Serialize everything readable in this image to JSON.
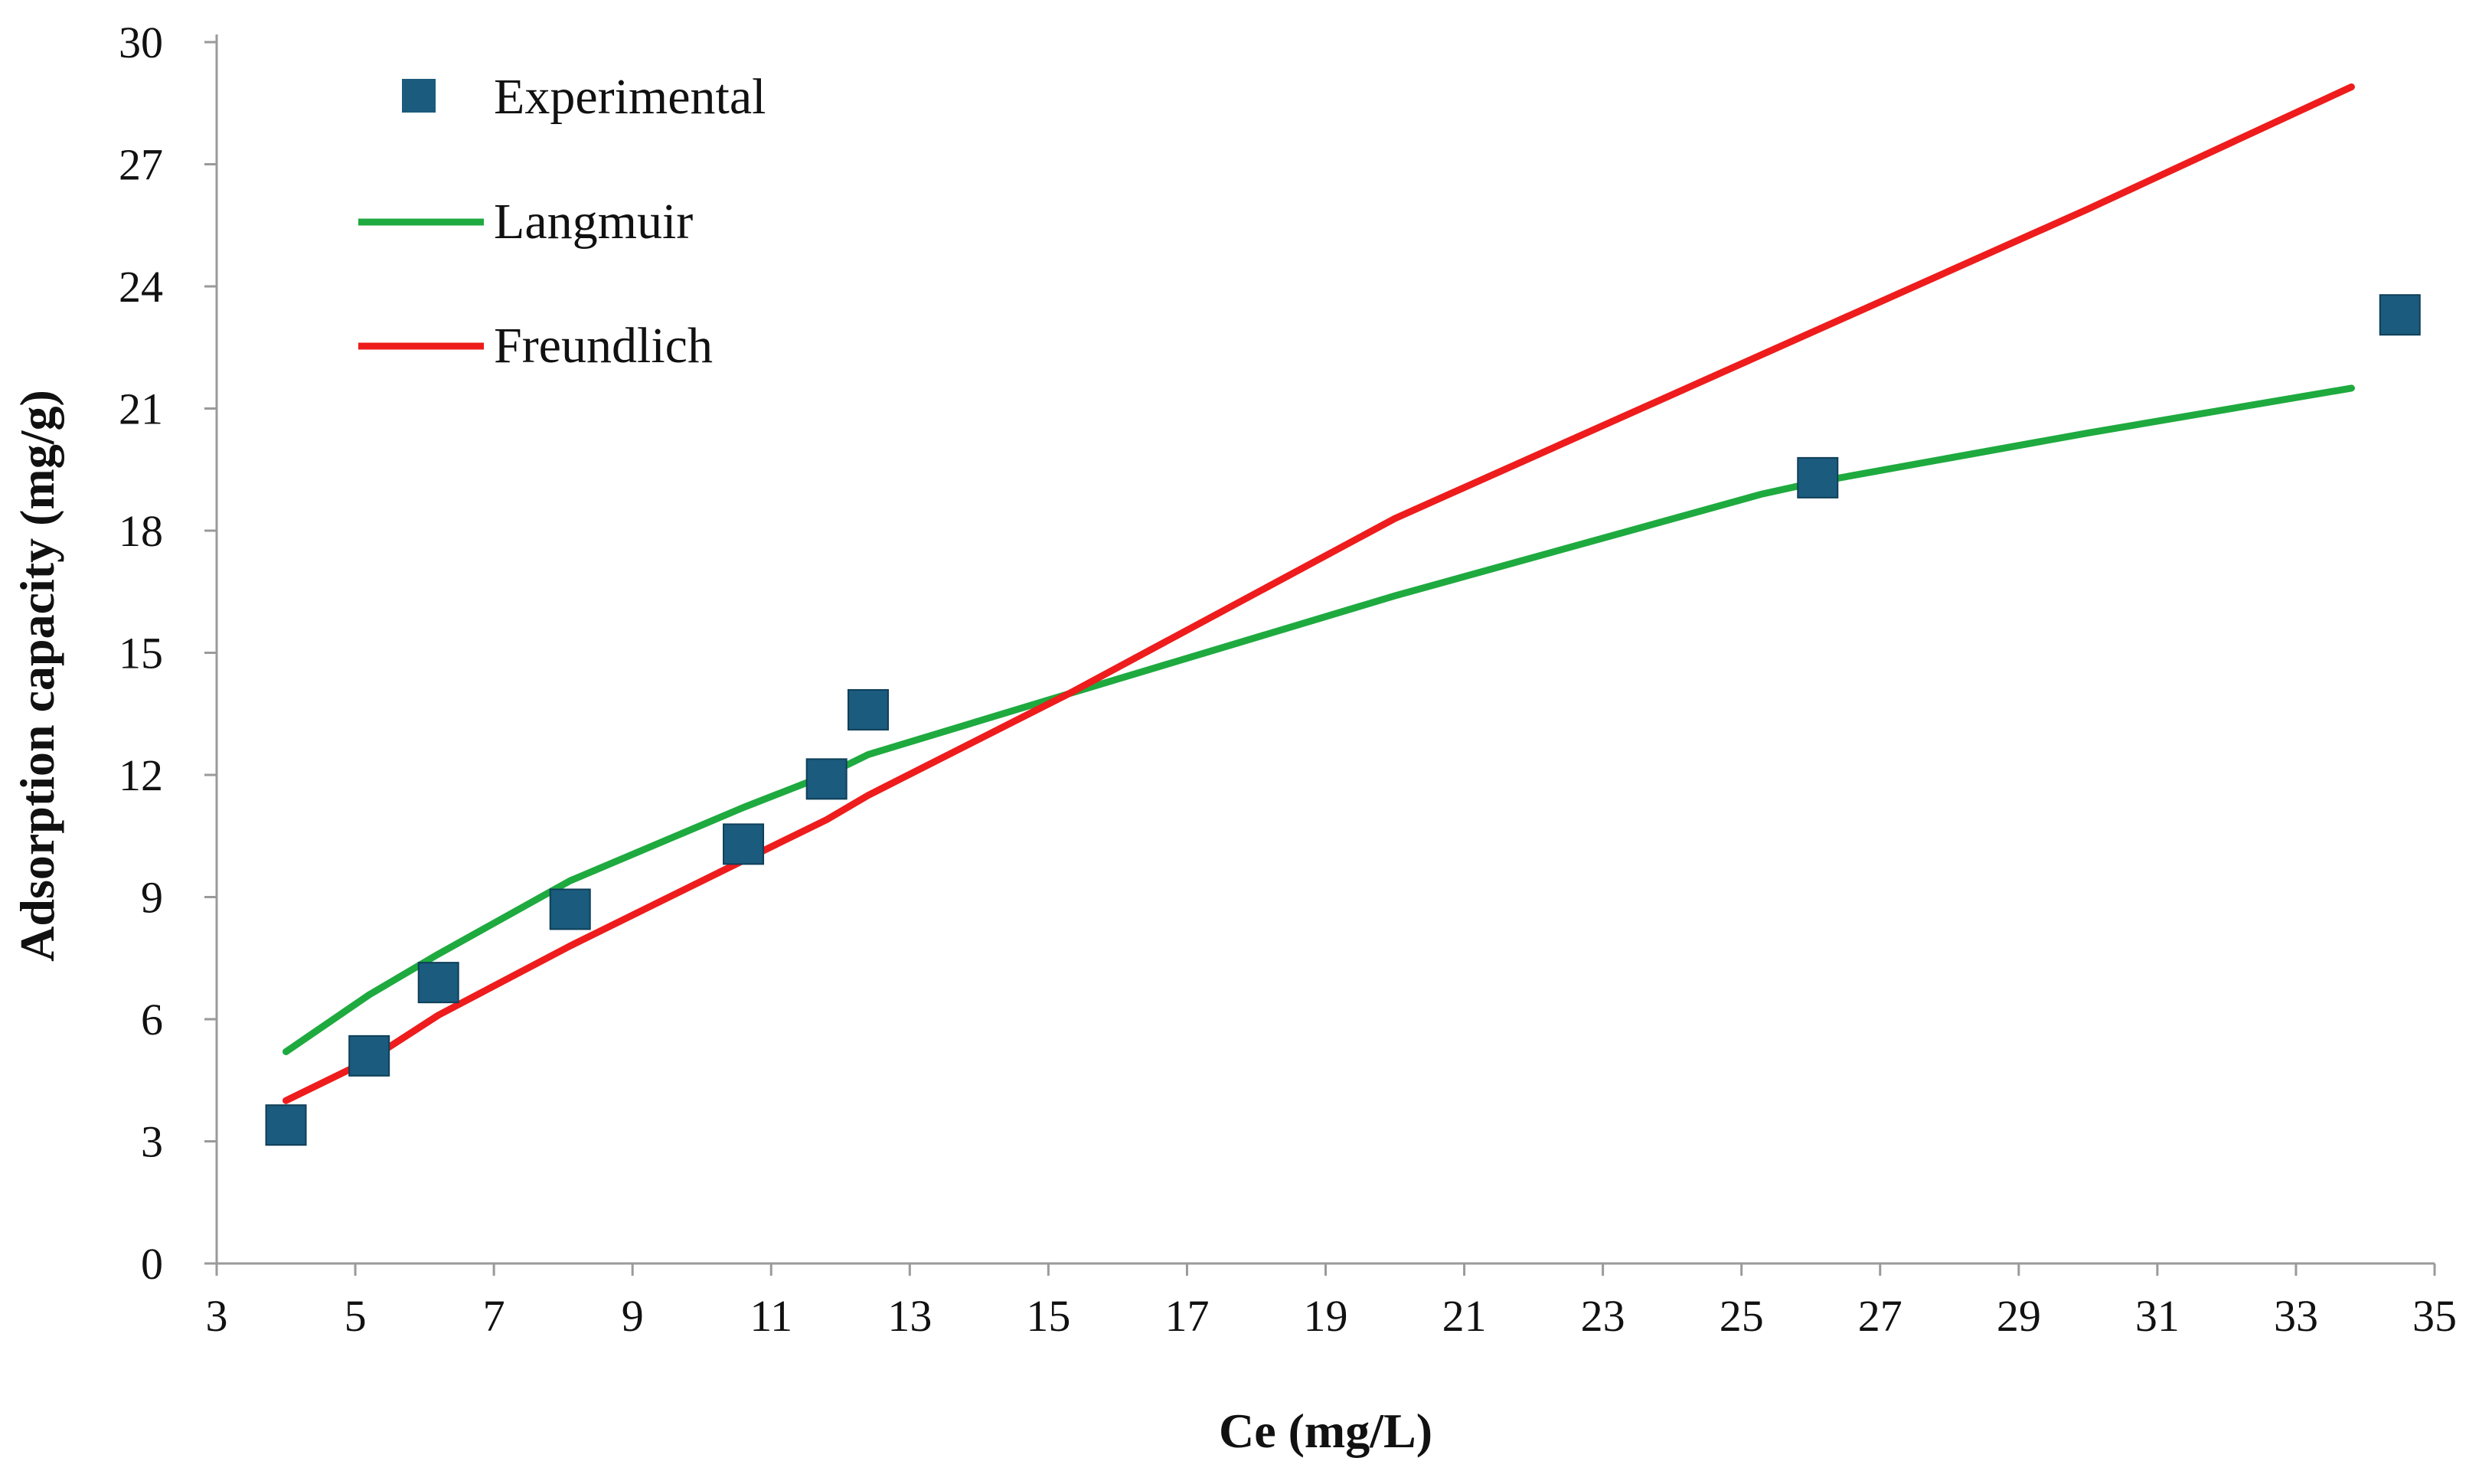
{
  "chart_data": {
    "type": "scatter",
    "xlabel": "Ce (mg/L)",
    "ylabel": "Adsorption capacity (mg/g)",
    "xlim": [
      3,
      35
    ],
    "ylim": [
      0,
      30
    ],
    "x_ticks": [
      3,
      5,
      7,
      9,
      11,
      13,
      15,
      17,
      19,
      21,
      23,
      25,
      27,
      29,
      31,
      33,
      35
    ],
    "y_ticks": [
      0,
      3,
      6,
      9,
      12,
      15,
      18,
      21,
      24,
      27,
      30
    ],
    "grid": false,
    "legend_position": "top-left",
    "series": [
      {
        "name": "Experimental",
        "kind": "markers",
        "marker": "square",
        "color": "#1b5b7e",
        "x": [
          4.0,
          5.2,
          6.2,
          8.1,
          10.6,
          11.8,
          12.4,
          26.1,
          34.5
        ],
        "y": [
          3.4,
          5.1,
          6.9,
          8.7,
          10.3,
          11.9,
          13.6,
          19.3,
          23.3
        ]
      },
      {
        "name": "Langmuir",
        "kind": "line",
        "color": "#1eaa3f",
        "x": [
          4.0,
          5.2,
          6.2,
          8.1,
          10.6,
          11.8,
          12.4,
          15.5,
          20.0,
          25.3,
          26.1,
          30.0,
          33.8
        ],
        "y": [
          5.2,
          6.6,
          7.6,
          9.4,
          11.2,
          12.0,
          12.5,
          14.1,
          16.4,
          18.9,
          19.2,
          20.4,
          21.5
        ]
      },
      {
        "name": "Freundlich",
        "kind": "line",
        "color": "#ee1c1c",
        "x": [
          4.0,
          5.2,
          6.2,
          8.1,
          10.6,
          11.8,
          12.4,
          15.3,
          20.0,
          25.0,
          30.0,
          33.8
        ],
        "y": [
          4.0,
          5.0,
          6.1,
          7.8,
          9.9,
          10.9,
          11.5,
          14.0,
          18.3,
          22.1,
          25.9,
          28.9
        ]
      }
    ]
  }
}
